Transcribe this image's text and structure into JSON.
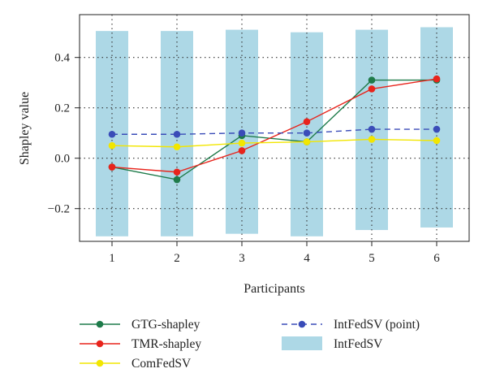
{
  "chart_data": {
    "type": "line",
    "xlabel": "Participants",
    "ylabel": "Shapley value",
    "x": [
      1,
      2,
      3,
      4,
      5,
      6
    ],
    "xlim": [
      0.5,
      6.5
    ],
    "ylim": [
      -0.33,
      0.57
    ],
    "yticks": [
      -0.2,
      0.0,
      0.2,
      0.4
    ],
    "ytick_labels": [
      "−0.2",
      "0.0",
      "0.2",
      "0.4"
    ],
    "xtick_labels": [
      "1",
      "2",
      "3",
      "4",
      "5",
      "6"
    ],
    "grid": "dotted",
    "interval": {
      "name": "IntFedSV",
      "color": "#add8e6",
      "lower": [
        -0.31,
        -0.31,
        -0.3,
        -0.31,
        -0.285,
        -0.275
      ],
      "upper": [
        0.505,
        0.505,
        0.51,
        0.5,
        0.51,
        0.52
      ]
    },
    "series": [
      {
        "name": "GTG-shapley",
        "color": "#1e7b4a",
        "style": "solid",
        "values": [
          -0.035,
          -0.085,
          0.09,
          0.065,
          0.31,
          0.31
        ]
      },
      {
        "name": "TMR-shapley",
        "color": "#e8241c",
        "style": "solid",
        "values": [
          -0.035,
          -0.055,
          0.03,
          0.145,
          0.275,
          0.315
        ]
      },
      {
        "name": "ComFedSV",
        "color": "#f2e600",
        "style": "solid",
        "values": [
          0.05,
          0.045,
          0.06,
          0.065,
          0.075,
          0.07
        ]
      },
      {
        "name": "IntFedSV (point)",
        "color": "#3a4cb8",
        "style": "dashed",
        "values": [
          0.095,
          0.095,
          0.1,
          0.1,
          0.115,
          0.115
        ]
      }
    ],
    "legend_position": "bottom"
  }
}
